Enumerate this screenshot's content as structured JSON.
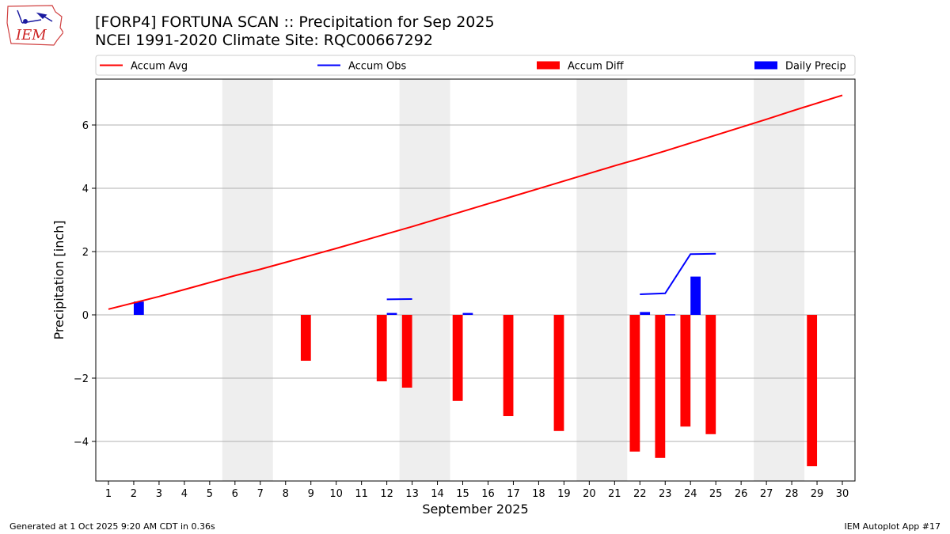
{
  "header": {
    "title_line1": "[FORP4] FORTUNA SCAN :: Precipitation for Sep 2025",
    "title_line2": "NCEI 1991-2020 Climate Site: RQC00667292",
    "logo_text": "IEM"
  },
  "footer": {
    "left": "Generated at 1 Oct 2025 9:20 AM CDT in 0.36s",
    "right": "IEM Autoplot App #17"
  },
  "colors": {
    "avg": "#ff0000",
    "obs": "#0000ff",
    "diff": "#ff0000",
    "daily": "#0000ff",
    "weekend": "#eeeeee",
    "grid": "#b0b0b0"
  },
  "chart_data": {
    "type": "bar",
    "xlabel": "September 2025",
    "ylabel": "Precipitation [inch]",
    "xlim": [
      0.5,
      30.5
    ],
    "ylim": [
      -5.25,
      7.45
    ],
    "yticks": [
      -4,
      -2,
      0,
      2,
      4,
      6
    ],
    "ytick_labels": [
      "−4",
      "−2",
      "0",
      "2",
      "4",
      "6"
    ],
    "days": [
      1,
      2,
      3,
      4,
      5,
      6,
      7,
      8,
      9,
      10,
      11,
      12,
      13,
      14,
      15,
      16,
      17,
      18,
      19,
      20,
      21,
      22,
      23,
      24,
      25,
      26,
      27,
      28,
      29,
      30
    ],
    "weekend_spans": [
      [
        6,
        7
      ],
      [
        13,
        14
      ],
      [
        20,
        21
      ],
      [
        27,
        28
      ]
    ],
    "legend": [
      "Accum Avg",
      "Accum Obs",
      "Accum Diff",
      "Daily Precip"
    ],
    "series": [
      {
        "name": "Accum Avg",
        "kind": "line",
        "x": [
          1,
          2,
          3,
          4,
          5,
          6,
          7,
          8,
          9,
          10,
          11,
          12,
          13,
          14,
          15,
          16,
          17,
          18,
          19,
          20,
          21,
          22,
          23,
          24,
          25,
          26,
          27,
          28,
          29,
          30
        ],
        "values": [
          0.18,
          0.38,
          0.58,
          0.8,
          1.02,
          1.24,
          1.44,
          1.66,
          1.88,
          2.1,
          2.33,
          2.56,
          2.79,
          3.03,
          3.27,
          3.51,
          3.75,
          3.99,
          4.23,
          4.47,
          4.71,
          4.94,
          5.18,
          5.43,
          5.68,
          5.93,
          6.18,
          6.44,
          6.69,
          6.94
        ]
      },
      {
        "name": "Accum Obs",
        "kind": "line",
        "segments": [
          {
            "x": [
              12,
              13
            ],
            "values": [
              0.49,
              0.5
            ]
          },
          {
            "x": [
              22,
              23,
              24,
              25
            ],
            "values": [
              0.65,
              0.68,
              1.92,
              1.93
            ]
          }
        ]
      },
      {
        "name": "Accum Diff",
        "kind": "bar",
        "x": [
          9,
          12,
          13,
          15,
          17,
          19,
          22,
          23,
          24,
          25,
          29
        ],
        "values": [
          -1.45,
          -2.1,
          -2.3,
          -2.72,
          -3.2,
          -3.67,
          -4.32,
          -4.52,
          -3.53,
          -3.77,
          -4.78
        ]
      },
      {
        "name": "Daily Precip",
        "kind": "bar",
        "x": [
          2,
          12,
          15,
          22,
          23,
          24
        ],
        "values": [
          0.42,
          0.06,
          0.06,
          0.09,
          0.02,
          1.21
        ]
      }
    ]
  }
}
